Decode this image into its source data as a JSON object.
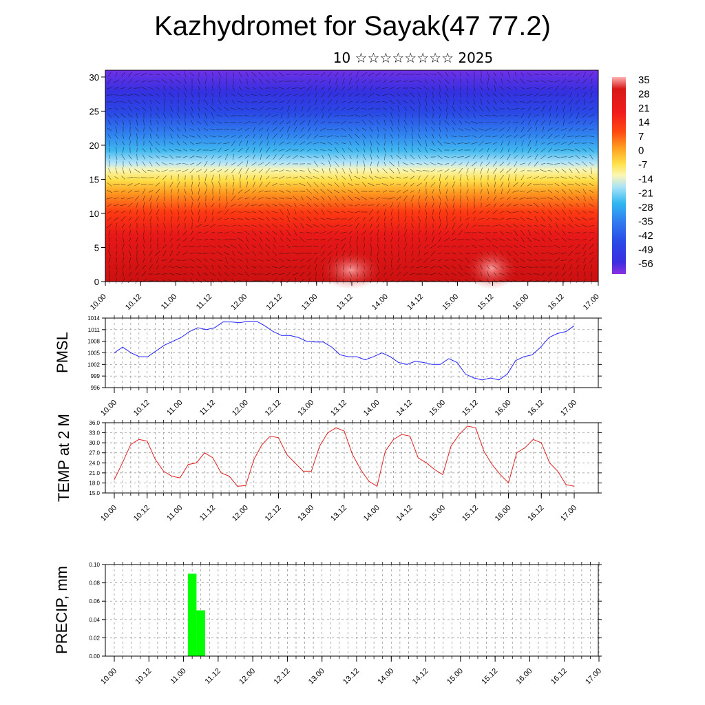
{
  "header": {
    "title": "Kazhydromet for Sayak(47 77.2)",
    "subtitle": "10 ☆☆☆☆☆☆☆☆ 2025"
  },
  "x_ticks": [
    "10.00",
    "10.12",
    "11.00",
    "11.12",
    "12.00",
    "12.12",
    "13.00",
    "13.12",
    "14.00",
    "14.12",
    "15.00",
    "15.12",
    "16.00",
    "16.12",
    "17.00"
  ],
  "chart_data": [
    {
      "type": "heatmap",
      "title": "",
      "ylim": [
        0,
        31
      ],
      "yticks": [
        "0",
        "5",
        "10",
        "15",
        "20",
        "25",
        "30"
      ],
      "colorbar": {
        "labels": [
          "35",
          "28",
          "21",
          "14",
          "7",
          "0",
          "-7",
          "-14",
          "-21",
          "-28",
          "-35",
          "-42",
          "-49",
          "-56"
        ],
        "colors": [
          "#ff9aa0",
          "#d01818",
          "#ee1c1c",
          "#ff3a10",
          "#ff7a12",
          "#ffb820",
          "#ffee60",
          "#f8f6b8",
          "#a0e0f8",
          "#30b8f0",
          "#3080f0",
          "#2a50e8",
          "#3030e0",
          "#8030e0"
        ]
      },
      "overlay": "wind vectors"
    },
    {
      "type": "line",
      "ylabel": "PMSL",
      "ylim": [
        996,
        1014
      ],
      "yticks": [
        "996",
        "999",
        "1002",
        "1005",
        "1008",
        "1011",
        "1014"
      ],
      "color": "#2020ff",
      "values": [
        1005,
        1006.5,
        1005,
        1004,
        1004,
        1005.5,
        1007,
        1008,
        1009,
        1010.5,
        1011.5,
        1011,
        1011.5,
        1013,
        1013,
        1012.8,
        1013.2,
        1013.2,
        1012,
        1010.5,
        1009.5,
        1009.5,
        1009,
        1008,
        1007.8,
        1007.8,
        1006.5,
        1004.5,
        1004,
        1004,
        1003.2,
        1004,
        1005,
        1004,
        1002.5,
        1002,
        1002.8,
        1002.5,
        1002,
        1002,
        1003.5,
        1002.5,
        999.5,
        998.5,
        998,
        998.5,
        998,
        999.5,
        1003,
        1004,
        1004.5,
        1006.5,
        1009,
        1010,
        1010.5,
        1012
      ]
    },
    {
      "type": "line",
      "ylabel": "TEMP at 2 M",
      "ylim": [
        15,
        36
      ],
      "yticks": [
        "15.0",
        "18.0",
        "21.0",
        "24.0",
        "27.0",
        "30.0",
        "33.0",
        "36.0"
      ],
      "color": "#e02020",
      "values": [
        19,
        24,
        29.5,
        31,
        30.5,
        25,
        21.5,
        20,
        19.5,
        23.5,
        24,
        27,
        25.5,
        21,
        20,
        17,
        17.2,
        25,
        29.5,
        32,
        31.5,
        26.5,
        24,
        21.5,
        21.5,
        29,
        33,
        34.5,
        33.5,
        26.5,
        22,
        18.5,
        17,
        27.5,
        31,
        32.5,
        32,
        25.5,
        24,
        22,
        20.5,
        29,
        32.5,
        35,
        34.5,
        27.5,
        23.5,
        20.5,
        18,
        27,
        28.5,
        31,
        30,
        24,
        21.5,
        17.5,
        17
      ]
    },
    {
      "type": "bar",
      "ylabel": "PRECIP, mm",
      "ylim": [
        0,
        0.1
      ],
      "yticks": [
        "0.00",
        "0.02",
        "0.04",
        "0.06",
        "0.08",
        "0.10"
      ],
      "color": "#00ff00",
      "bars": [
        {
          "x": "11.03",
          "value": 0.09
        },
        {
          "x": "11.06",
          "value": 0.05
        }
      ]
    }
  ]
}
